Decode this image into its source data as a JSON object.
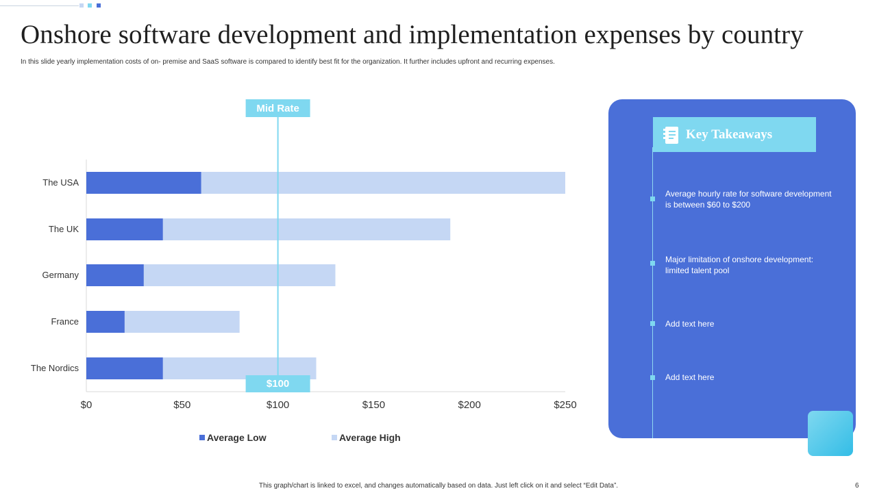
{
  "title": "Onshore software development and implementation expenses by country",
  "subtitle": "In this slide yearly implementation  costs of on- premise and SaaS software is compared to identify best fit for the organization. It further includes upfront and recurring expenses.",
  "chart_data": {
    "type": "bar",
    "orientation": "horizontal",
    "stacked": true,
    "categories": [
      "The USA",
      "The UK",
      "Germany",
      "France",
      "The Nordics"
    ],
    "series": [
      {
        "name": "Average Low",
        "values": [
          60,
          40,
          30,
          20,
          40
        ],
        "color": "#4a6fd8"
      },
      {
        "name": "Average High",
        "values": [
          190,
          150,
          100,
          60,
          80
        ],
        "color": "#c5d7f4"
      }
    ],
    "xlim": [
      0,
      250
    ],
    "xticks": [
      0,
      50,
      100,
      150,
      200,
      250
    ],
    "xtick_labels": [
      "$0",
      "$50",
      "$100",
      "$150",
      "$200",
      "$250"
    ],
    "legend_position": "bottom",
    "reference_line": {
      "value": 100,
      "top_label": "Mid Rate",
      "bottom_label": "$100",
      "color": "#7fd8f0"
    }
  },
  "takeaways": {
    "title": "Key Takeaways",
    "items": [
      "Average  hourly rate for software development  is between $60 to $200",
      "Major limitation of onshore development: limited talent pool",
      "Add text here",
      "Add text here"
    ]
  },
  "footer": "This graph/chart is linked to excel, and changes automatically based on data. Just left click on it and select “Edit Data”.",
  "page_number": "6",
  "colors": {
    "accent": "#4a6fd8",
    "light_accent": "#7fd8f0",
    "bar_high": "#c5d7f4"
  }
}
